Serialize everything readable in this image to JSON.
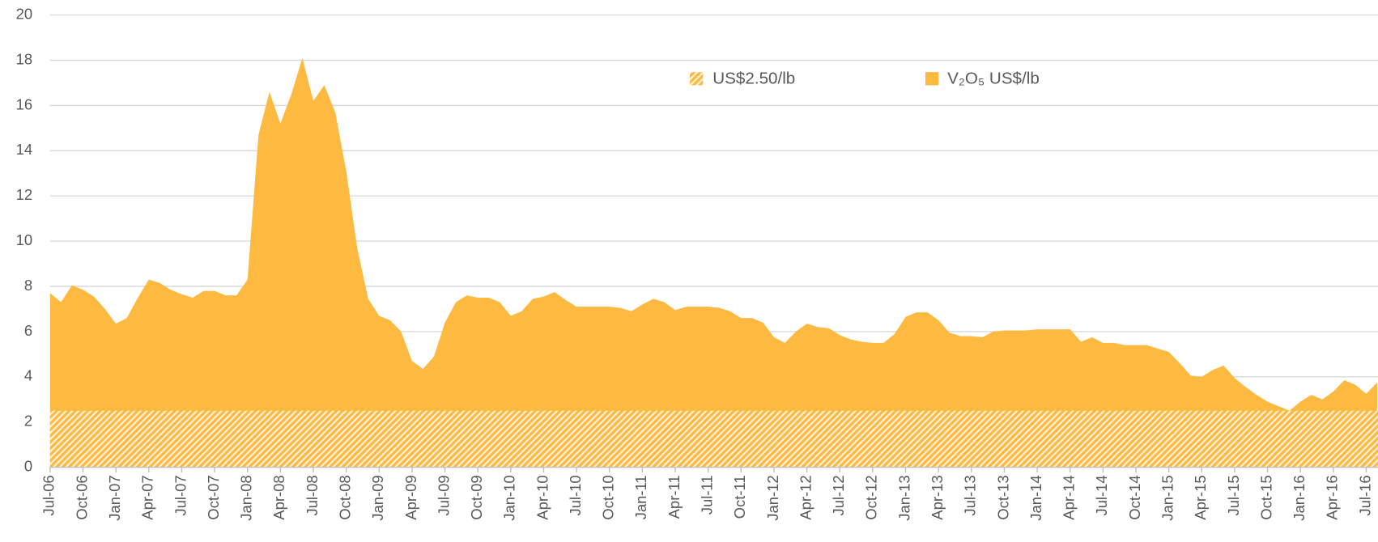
{
  "chart_data": {
    "type": "area",
    "categories": [
      "Jul-06",
      null,
      null,
      "Oct-06",
      null,
      null,
      "Jan-07",
      null,
      null,
      "Apr-07",
      null,
      null,
      "Jul-07",
      null,
      null,
      "Oct-07",
      null,
      null,
      "Jan-08",
      null,
      null,
      "Apr-08",
      null,
      null,
      "Jul-08",
      null,
      null,
      "Oct-08",
      null,
      null,
      "Jan-09",
      null,
      null,
      "Apr-09",
      null,
      null,
      "Jul-09",
      null,
      null,
      "Oct-09",
      null,
      null,
      "Jan-10",
      null,
      null,
      "Apr-10",
      null,
      null,
      "Jul-10",
      null,
      null,
      "Oct-10",
      null,
      null,
      "Jan-11",
      null,
      null,
      "Apr-11",
      null,
      null,
      "Jul-11",
      null,
      null,
      "Oct-11",
      null,
      null,
      "Jan-12",
      null,
      null,
      "Apr-12",
      null,
      null,
      "Jul-12",
      null,
      null,
      "Oct-12",
      null,
      null,
      "Jan-13",
      null,
      null,
      "Apr-13",
      null,
      null,
      "Jul-13",
      null,
      null,
      "Oct-13",
      null,
      null,
      "Jan-14",
      null,
      null,
      "Apr-14",
      null,
      null,
      "Jul-14",
      null,
      null,
      "Oct-14",
      null,
      null,
      "Jan-15",
      null,
      null,
      "Apr-15",
      null,
      null,
      "Jul-15",
      null,
      null,
      "Oct-15",
      null,
      null,
      "Jan-16",
      null,
      null,
      "Apr-16",
      null,
      null,
      "Jul-16",
      null
    ],
    "series": [
      {
        "name": "V₂O₅ US$/lb",
        "color": "#fdb940",
        "values": [
          7.7,
          7.3,
          8.05,
          7.85,
          7.55,
          7.0,
          6.35,
          6.6,
          7.5,
          8.3,
          8.15,
          7.85,
          7.65,
          7.5,
          7.8,
          7.8,
          7.6,
          7.6,
          8.3,
          14.7,
          16.6,
          15.2,
          16.5,
          18.1,
          16.2,
          16.9,
          15.7,
          13.1,
          9.7,
          7.45,
          6.7,
          6.5,
          6.0,
          4.7,
          4.35,
          4.9,
          6.4,
          7.3,
          7.6,
          7.5,
          7.5,
          7.3,
          6.7,
          6.9,
          7.45,
          7.55,
          7.75,
          7.4,
          7.1,
          7.1,
          7.1,
          7.1,
          7.05,
          6.9,
          7.2,
          7.45,
          7.3,
          6.95,
          7.1,
          7.1,
          7.1,
          7.05,
          6.9,
          6.6,
          6.6,
          6.4,
          5.75,
          5.5,
          6.0,
          6.35,
          6.2,
          6.15,
          5.85,
          5.65,
          5.55,
          5.5,
          5.5,
          5.9,
          6.65,
          6.85,
          6.85,
          6.5,
          5.95,
          5.8,
          5.8,
          5.75,
          6.0,
          6.05,
          6.05,
          6.05,
          6.1,
          6.1,
          6.1,
          6.1,
          5.55,
          5.75,
          5.5,
          5.5,
          5.4,
          5.4,
          5.4,
          5.25,
          5.1,
          4.6,
          4.05,
          4.0,
          4.3,
          4.5,
          3.95,
          3.55,
          3.2,
          2.9,
          2.7,
          2.5,
          2.9,
          3.2,
          3.0,
          3.35,
          3.85,
          3.65,
          3.25,
          3.75
        ]
      }
    ],
    "reference": {
      "name": "US$2.50/lb",
      "value": 2.5,
      "color": "#fdb940",
      "pattern": "hatch"
    },
    "ylim": [
      0,
      20
    ],
    "yticks": [
      0,
      2,
      4,
      6,
      8,
      10,
      12,
      14,
      16,
      18,
      20
    ],
    "grid": true
  }
}
